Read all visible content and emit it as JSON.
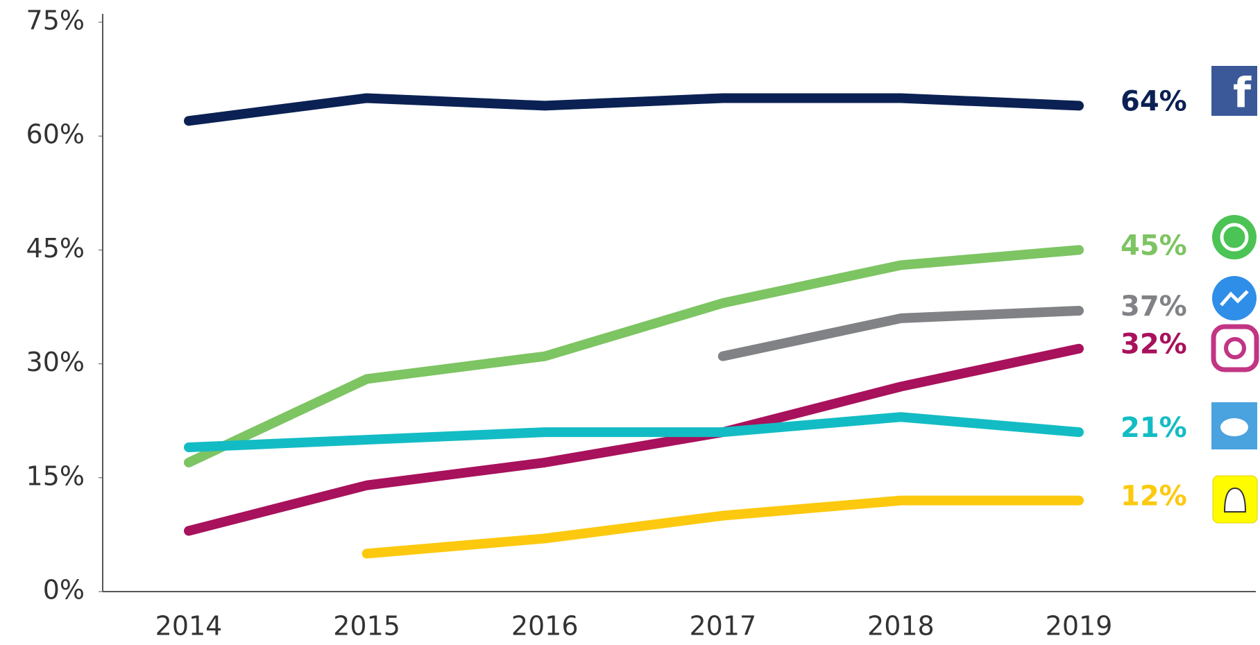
{
  "chart_data": {
    "type": "line",
    "categories": [
      "2014",
      "2015",
      "2016",
      "2017",
      "2018",
      "2019"
    ],
    "ylim": [
      0,
      75
    ],
    "yticks": [
      {
        "value": 0,
        "label": "0%"
      },
      {
        "value": 15,
        "label": "15%"
      },
      {
        "value": 30,
        "label": "30%"
      },
      {
        "value": 45,
        "label": "45%"
      },
      {
        "value": 60,
        "label": "60%"
      },
      {
        "value": 75,
        "label": "75%"
      }
    ],
    "grid": false,
    "series": [
      {
        "color": "#0b2154",
        "values": [
          62,
          65,
          64,
          65,
          65,
          64
        ],
        "value_labels": [
          null,
          null,
          null,
          null,
          null,
          "64%"
        ]
      },
      {
        "color": "#7dc462",
        "values": [
          17,
          28,
          31,
          38,
          43,
          45
        ],
        "value_labels": [
          null,
          null,
          null,
          null,
          null,
          "45%"
        ]
      },
      {
        "color": "#808285",
        "values": [
          null,
          null,
          null,
          31,
          36,
          37
        ],
        "value_labels": [
          null,
          null,
          null,
          null,
          null,
          "37%"
        ]
      },
      {
        "color": "#a8115c",
        "values": [
          8,
          14,
          17,
          21,
          27,
          32
        ],
        "value_labels": [
          null,
          null,
          null,
          null,
          null,
          "32%"
        ]
      },
      {
        "color": "#13bcc4",
        "values": [
          19,
          20,
          21,
          21,
          23,
          21
        ],
        "value_labels": [
          null,
          null,
          null,
          null,
          null,
          "21%"
        ]
      },
      {
        "color": "#fcc90f",
        "values": [
          null,
          5,
          7,
          10,
          12,
          12
        ],
        "value_labels": [
          null,
          null,
          null,
          null,
          null,
          "12%"
        ]
      }
    ]
  }
}
